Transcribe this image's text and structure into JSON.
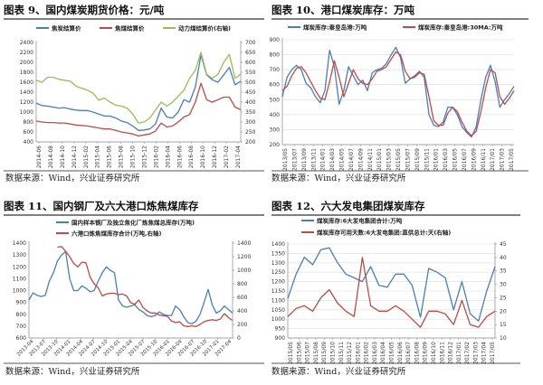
{
  "source_label": "数据来源：Wind，兴业证券研究所",
  "chart_data": [
    {
      "type": "line",
      "title": "图表 9、国内煤炭期货价格：元/吨",
      "grid": false,
      "legend_position": "top",
      "ylim_left": [
        400,
        2400
      ],
      "yticks_left": [
        "400",
        "600",
        "800",
        "1000",
        "1200",
        "1400",
        "1600",
        "1800",
        "2000",
        "2200",
        "2400"
      ],
      "ylim_right": [
        200,
        700
      ],
      "yticks_right": [
        "200",
        "250",
        "300",
        "350",
        "400",
        "450",
        "500",
        "550",
        "600",
        "650",
        "700"
      ],
      "xticks": [
        "2014-06",
        "2014-08",
        "2014-10",
        "2014-12",
        "2015-02",
        "2015-04",
        "2015-06",
        "2015-08",
        "2015-10",
        "2015-12",
        "2016-02",
        "2016-04",
        "2016-06",
        "2016-08",
        "2016-10",
        "2016-12",
        "2017-02",
        "2017-04"
      ],
      "x_range": [
        "2014-06",
        "2017-06"
      ],
      "series": [
        {
          "name": "焦炭结算价",
          "axis": "left",
          "color": "#4a7ebb",
          "values": [
            1180,
            1130,
            1120,
            1100,
            1080,
            1090,
            1060,
            1040,
            1030,
            1030,
            1000,
            960,
            920,
            920,
            880,
            820,
            790,
            720,
            630,
            640,
            660,
            760,
            1080,
            900,
            880,
            1000,
            1250,
            1200,
            1500,
            2150,
            1750,
            1650,
            1600,
            1750,
            1900,
            1550,
            1620
          ]
        },
        {
          "name": "焦煤结算价",
          "axis": "left",
          "color": "#be4b48",
          "values": [
            820,
            800,
            790,
            790,
            780,
            780,
            760,
            740,
            730,
            720,
            700,
            680,
            660,
            660,
            630,
            600,
            580,
            560,
            520,
            540,
            560,
            620,
            780,
            700,
            720,
            800,
            900,
            950,
            1200,
            1580,
            1250,
            1200,
            1250,
            1300,
            1300,
            1100,
            1050
          ]
        },
        {
          "name": "动力煤结算价(右轴)",
          "axis": "right",
          "color": "#9bbb59",
          "values": [
            510,
            500,
            525,
            525,
            515,
            510,
            505,
            480,
            470,
            460,
            445,
            410,
            420,
            400,
            385,
            380,
            370,
            340,
            295,
            300,
            320,
            360,
            400,
            380,
            400,
            430,
            460,
            520,
            560,
            650,
            540,
            520,
            540,
            600,
            640,
            520,
            540
          ]
        }
      ]
    },
    {
      "type": "line",
      "title": "图表 10、港口煤炭库存：万吨",
      "grid": true,
      "legend_position": "top",
      "ylim_left": [
        200,
        900
      ],
      "yticks_left": [
        "200",
        "300",
        "400",
        "500",
        "600",
        "700",
        "800",
        "900"
      ],
      "xticks": [
        "2013/05",
        "2013/07",
        "2013/09",
        "2013/11",
        "2014/01",
        "2014/03",
        "2014/05",
        "2014/07",
        "2014/09",
        "2014/11",
        "2015/01",
        "2015/03",
        "2015/05",
        "2015/07",
        "2015/09",
        "2015/11",
        "2016/01",
        "2016/03",
        "2016/05",
        "2016/07",
        "2016/09",
        "2016/11",
        "2017/01",
        "2017/03",
        "2017/05"
      ],
      "x_range": [
        "2013/05",
        "2017/06"
      ],
      "series": [
        {
          "name": "煤炭库存:秦皇岛港:万吨",
          "axis": "left",
          "color": "#4a7ebb",
          "values": [
            520,
            650,
            700,
            730,
            700,
            610,
            580,
            520,
            480,
            560,
            830,
            720,
            470,
            560,
            720,
            660,
            600,
            630,
            560,
            680,
            700,
            710,
            740,
            800,
            850,
            780,
            610,
            640,
            660,
            690,
            650,
            400,
            330,
            320,
            350,
            450,
            450,
            400,
            320,
            280,
            250,
            320,
            500,
            650,
            730,
            620,
            450,
            500,
            540,
            590
          ]
        },
        {
          "name": "煤炭库存:秦皇岛港:30MA:万吨",
          "axis": "left",
          "color": "#be4b48",
          "values": [
            560,
            590,
            660,
            710,
            720,
            680,
            620,
            560,
            510,
            500,
            620,
            760,
            650,
            520,
            610,
            700,
            640,
            610,
            600,
            640,
            690,
            700,
            720,
            770,
            820,
            800,
            690,
            640,
            650,
            680,
            670,
            520,
            360,
            330,
            330,
            410,
            450,
            420,
            350,
            290,
            260,
            290,
            420,
            580,
            700,
            680,
            520,
            470,
            510,
            560
          ]
        }
      ]
    },
    {
      "type": "line",
      "title": "图表 11、国内钢厂及六大港口炼焦煤库存",
      "grid": false,
      "legend_position": "top",
      "ylim_left": [
        600,
        1400
      ],
      "yticks_left": [
        "600",
        "700",
        "800",
        "900",
        "1000",
        "1100",
        "1200",
        "1300",
        "1400"
      ],
      "ylim_right": [
        0,
        1400
      ],
      "yticks_right": [
        "0",
        "200",
        "400",
        "600",
        "800",
        "1000",
        "1200",
        "1400"
      ],
      "xticks": [
        "2013-04",
        "2013-07",
        "2013-10",
        "2014-01",
        "2014-04",
        "2014-07",
        "2014-10",
        "2015-01",
        "2015-04",
        "2015-07",
        "2015-10",
        "2016-01",
        "2016-04",
        "2016-07",
        "2016-10",
        "2017-01",
        "2017-04"
      ],
      "x_range": [
        "2013-04",
        "2017-06"
      ],
      "series": [
        {
          "name": "国内样本钢厂及独立焦化厂炼焦煤总库存(万吨)",
          "axis": "left",
          "color": "#4a7ebb",
          "values": [
            920,
            980,
            960,
            950,
            960,
            1080,
            1150,
            1250,
            1300,
            1330,
            1100,
            1000,
            1000,
            1040,
            1020,
            990,
            1000,
            1080,
            1150,
            1200,
            1170,
            1150,
            920,
            870,
            860,
            870,
            880,
            840,
            820,
            790,
            780,
            790,
            820,
            800,
            790,
            790,
            870,
            840,
            780,
            730,
            720,
            740,
            800,
            900,
            1010,
            880,
            810,
            830,
            870,
            840,
            810
          ]
        },
        {
          "name": "六港口炼焦煤库存合计(万吨,右轴)",
          "axis": "right",
          "color": "#be4b48",
          "values": [
            null,
            null,
            null,
            null,
            null,
            null,
            null,
            1340,
            1350,
            1280,
            1200,
            1100,
            1050,
            1120,
            1110,
            900,
            800,
            740,
            620,
            650,
            660,
            660,
            640,
            650,
            620,
            520,
            500,
            560,
            450,
            400,
            370,
            370,
            340,
            330,
            320,
            250,
            230,
            240,
            180,
            170,
            180,
            170,
            200,
            240,
            260,
            270,
            260,
            280,
            360,
            300,
            260
          ]
        }
      ]
    },
    {
      "type": "line",
      "title": "图表 12、六大发电集团煤炭库存",
      "grid": true,
      "legend_position": "top",
      "ylim_left": [
        900,
        1400
      ],
      "yticks_left": [
        "900",
        "950",
        "1000",
        "1050",
        "1100",
        "1150",
        "1200",
        "1250",
        "1300",
        "1350",
        "1400"
      ],
      "ylim_right": [
        10,
        45
      ],
      "yticks_right": [
        "10",
        "15",
        "20",
        "25",
        "30",
        "35",
        "40",
        "45"
      ],
      "xticks": [
        "2015/05",
        "2015/06",
        "2015/07",
        "2015/08",
        "2015/09",
        "2015/10",
        "2015/11",
        "2015/12",
        "2016/01",
        "2016/02",
        "2016/03",
        "2016/04",
        "2016/05",
        "2016/06",
        "2016/07",
        "2016/08",
        "2016/09",
        "2016/10",
        "2016/11",
        "2016/12",
        "2017/01",
        "2017/02",
        "2017/03",
        "2017/04",
        "2017/05"
      ],
      "x_range": [
        "2015/05",
        "2017/06"
      ],
      "series": [
        {
          "name": "煤炭库存:6大发电集团合计:万吨",
          "axis": "left",
          "color": "#4a7ebb",
          "values": [
            1110,
            1240,
            1330,
            1290,
            1370,
            1380,
            1300,
            1240,
            1220,
            1200,
            1280,
            1180,
            1170,
            1240,
            1240,
            1180,
            1010,
            1270,
            1250,
            1220,
            1050,
            1200,
            1030,
            990,
            1150,
            1280
          ]
        },
        {
          "name": "煤炭库存可用天数:6大发电集团:直供总计:天(右轴)",
          "axis": "right",
          "color": "#be4b48",
          "values": [
            18,
            21,
            22,
            20,
            25,
            28,
            23,
            20,
            18,
            40,
            22,
            20,
            20,
            22,
            20,
            17,
            14,
            20,
            20,
            19,
            15,
            24,
            15,
            14,
            18,
            20
          ]
        }
      ]
    }
  ]
}
